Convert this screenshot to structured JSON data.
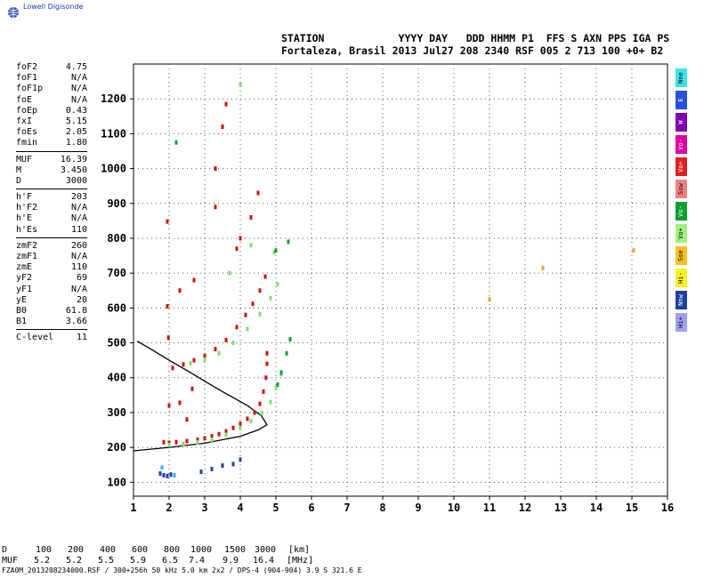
{
  "app": {
    "logo_text": "Lowell Digisonde"
  },
  "header": {
    "line1": "STATION            YYYY DAY   DDD HHMM P1  FFS S AXN PPS IGA PS",
    "line2": "Fortaleza, Brasil 2013 Jul27 208 2340 RSF 005 2 713 100 +0+ B2"
  },
  "params": [
    {
      "k": "foF2",
      "v": "4.75"
    },
    {
      "k": "foF1",
      "v": "N/A"
    },
    {
      "k": "foF1p",
      "v": "N/A"
    },
    {
      "k": "foE",
      "v": "N/A"
    },
    {
      "k": "foEp",
      "v": "0.43"
    },
    {
      "k": "fxI",
      "v": "5.15"
    },
    {
      "k": "foEs",
      "v": "2.05"
    },
    {
      "k": "fmin",
      "v": "1.80"
    },
    {
      "k": "MUF",
      "v": "16.39"
    },
    {
      "k": "M",
      "v": "3.450"
    },
    {
      "k": "D",
      "v": "3000"
    },
    {
      "k": "h'F",
      "v": "203"
    },
    {
      "k": "h'F2",
      "v": "N/A"
    },
    {
      "k": "h'E",
      "v": "N/A"
    },
    {
      "k": "h'Es",
      "v": "110"
    },
    {
      "k": "zmF2",
      "v": "260"
    },
    {
      "k": "zmF1",
      "v": "N/A"
    },
    {
      "k": "zmE",
      "v": "110"
    },
    {
      "k": "yF2",
      "v": "69"
    },
    {
      "k": "yF1",
      "v": "N/A"
    },
    {
      "k": "yE",
      "v": "20"
    },
    {
      "k": "B0",
      "v": "61.8"
    },
    {
      "k": "B1",
      "v": "3.66"
    },
    {
      "k": "C-level",
      "v": "11"
    }
  ],
  "legend": [
    {
      "label": "Nne",
      "color": "#40e0e8"
    },
    {
      "label": "E",
      "color": "#2850d8"
    },
    {
      "label": "W",
      "color": "#8000b0"
    },
    {
      "label": "Vo-",
      "color": "#e000a0"
    },
    {
      "label": "Vo+",
      "color": "#e02020"
    },
    {
      "label": "Ssw",
      "color": "#f08080"
    },
    {
      "label": "Vo-",
      "color": "#10a030"
    },
    {
      "label": "Vo+",
      "color": "#a0f080"
    },
    {
      "label": "Sse",
      "color": "#f8c020"
    },
    {
      "label": "Hi-",
      "color": "#f8f020"
    },
    {
      "label": "Nnw",
      "color": "#2040a0"
    },
    {
      "label": "Hi+",
      "color": "#a0a0f0"
    }
  ],
  "footer": {
    "d_label": "D",
    "muf_label": "MUF",
    "d_values": [
      "100",
      "200",
      "400",
      "600",
      "800",
      "1000",
      "1500",
      "3000",
      "[km]"
    ],
    "muf_values": [
      "5.2",
      "5.2",
      "5.5",
      "5.9",
      "6.5",
      "7.4",
      "9.9",
      "16.4",
      "[MHz]"
    ],
    "file_line": "FZA0M_2013208234000.RSF / 300+256h 50 kHz 5.0 km 2x2 / DPS-4 (904-904)  3.9 S 321.6 E"
  },
  "chart_data": {
    "type": "scatter",
    "title": "",
    "xlabel": "",
    "ylabel": "",
    "xlim": [
      1,
      16
    ],
    "ylim": [
      60,
      1300
    ],
    "x_ticks": [
      "1",
      "2",
      "3",
      "4",
      "5",
      "6",
      "7",
      "8",
      "9",
      "10",
      "11",
      "12",
      "13",
      "14",
      "15",
      "16"
    ],
    "y_ticks": [
      "100",
      "200",
      "300",
      "400",
      "500",
      "600",
      "700",
      "800",
      "900",
      "1000",
      "1100",
      "1200"
    ],
    "grid": true,
    "series": [
      {
        "color": "#d01010",
        "points": [
          [
            1.85,
            215
          ],
          [
            2.0,
            213
          ],
          [
            2.2,
            215
          ],
          [
            2.5,
            218
          ],
          [
            2.8,
            222
          ],
          [
            3.0,
            226
          ],
          [
            3.2,
            232
          ],
          [
            3.4,
            238
          ],
          [
            3.6,
            246
          ],
          [
            3.8,
            256
          ],
          [
            4.0,
            268
          ],
          [
            4.2,
            282
          ],
          [
            4.4,
            300
          ],
          [
            4.55,
            325
          ],
          [
            4.65,
            360
          ],
          [
            4.72,
            400
          ],
          [
            4.75,
            440
          ],
          [
            4.75,
            470
          ],
          [
            2.1,
            428
          ],
          [
            2.4,
            438
          ],
          [
            2.7,
            450
          ],
          [
            3.0,
            462
          ],
          [
            3.3,
            482
          ],
          [
            3.6,
            508
          ],
          [
            3.9,
            545
          ],
          [
            4.15,
            580
          ],
          [
            4.35,
            612
          ],
          [
            4.55,
            650
          ],
          [
            4.7,
            690
          ],
          [
            1.98,
            515
          ],
          [
            1.95,
            605
          ],
          [
            2.0,
            320
          ],
          [
            3.9,
            770
          ],
          [
            4.0,
            800
          ],
          [
            4.3,
            860
          ],
          [
            4.5,
            930
          ],
          [
            3.3,
            890
          ],
          [
            3.3,
            1000
          ],
          [
            3.5,
            1120
          ],
          [
            3.6,
            1185
          ],
          [
            1.95,
            848
          ],
          [
            2.7,
            680
          ],
          [
            2.3,
            650
          ],
          [
            2.3,
            328
          ],
          [
            2.5,
            280
          ],
          [
            2.65,
            368
          ]
        ]
      },
      {
        "color": "#80e070",
        "points": [
          [
            2.0,
            207
          ],
          [
            2.4,
            210
          ],
          [
            2.8,
            214
          ],
          [
            3.2,
            222
          ],
          [
            3.6,
            236
          ],
          [
            4.0,
            256
          ],
          [
            4.3,
            276
          ],
          [
            4.6,
            298
          ],
          [
            4.85,
            330
          ],
          [
            5.0,
            370
          ],
          [
            5.15,
            410
          ],
          [
            2.6,
            442
          ],
          [
            3.0,
            452
          ],
          [
            3.4,
            470
          ],
          [
            3.8,
            500
          ],
          [
            4.2,
            540
          ],
          [
            4.55,
            582
          ],
          [
            4.85,
            628
          ],
          [
            5.05,
            668
          ],
          [
            4.0,
            1240
          ],
          [
            4.3,
            780
          ],
          [
            3.7,
            700
          ],
          [
            4.95,
            760
          ]
        ]
      },
      {
        "color": "#10a030",
        "points": [
          [
            5.05,
            380
          ],
          [
            5.15,
            415
          ],
          [
            5.3,
            470
          ],
          [
            5.4,
            510
          ],
          [
            5.35,
            790
          ],
          [
            2.2,
            1075
          ],
          [
            5.0,
            765
          ]
        ]
      },
      {
        "color": "#2040a0",
        "points": [
          [
            1.75,
            125
          ],
          [
            1.85,
            120
          ],
          [
            1.95,
            118
          ],
          [
            2.05,
            122
          ],
          [
            2.9,
            130
          ],
          [
            3.2,
            138
          ],
          [
            3.5,
            148
          ],
          [
            3.8,
            152
          ],
          [
            4.0,
            165
          ]
        ]
      },
      {
        "color": "#f0a030",
        "points": [
          [
            12.5,
            715
          ],
          [
            15.05,
            765
          ],
          [
            11.0,
            625
          ]
        ]
      },
      {
        "color": "#40b0e0",
        "points": [
          [
            2.15,
            120
          ],
          [
            1.8,
            142
          ]
        ]
      }
    ],
    "model_curves": [
      {
        "name": "",
        "color": "#000000",
        "points": [
          [
            1,
            190
          ],
          [
            2,
            200
          ],
          [
            3,
            212
          ],
          [
            4,
            232
          ],
          [
            4.5,
            250
          ],
          [
            4.75,
            265
          ],
          [
            4.6,
            290
          ],
          [
            4.2,
            320
          ],
          [
            3.5,
            360
          ],
          [
            3.0,
            390
          ],
          [
            2.6,
            415
          ],
          [
            2.0,
            450
          ],
          [
            1.6,
            475
          ],
          [
            1.1,
            505
          ]
        ]
      }
    ]
  }
}
